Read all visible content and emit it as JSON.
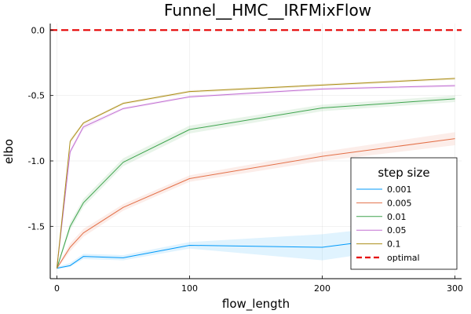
{
  "chart_data": {
    "type": "line",
    "title": "Funnel__HMC__IRFMixFlow",
    "xlabel": "flow_length",
    "ylabel": "elbo",
    "xlim": [
      -5,
      305
    ],
    "ylim": [
      -1.9,
      0.05
    ],
    "xticks": [
      0,
      100,
      200,
      300
    ],
    "yticks": [
      0.0,
      -0.5,
      -1.0,
      -1.5
    ],
    "xtick_labels": [
      "0",
      "100",
      "200",
      "300"
    ],
    "ytick_labels": [
      "0.0",
      "-0.5",
      "-1.0",
      "-1.5"
    ],
    "grid": true,
    "legend": {
      "title": "step size",
      "placement": "bottom-right"
    },
    "x": [
      0,
      10,
      20,
      50,
      100,
      200,
      300
    ],
    "series": [
      {
        "name": "0.001",
        "color": "#009AFA",
        "values": [
          -1.82,
          -1.8,
          -1.73,
          -1.74,
          -1.645,
          -1.66,
          -1.53
        ],
        "lower": [
          -1.83,
          -1.81,
          -1.75,
          -1.76,
          -1.67,
          -1.76,
          -1.61
        ],
        "upper": [
          -1.81,
          -1.78,
          -1.71,
          -1.72,
          -1.62,
          -1.56,
          -1.45
        ]
      },
      {
        "name": "0.005",
        "color": "#E36F47",
        "values": [
          -1.82,
          -1.66,
          -1.55,
          -1.355,
          -1.135,
          -0.965,
          -0.83
        ],
        "lower": [
          -1.83,
          -1.69,
          -1.58,
          -1.38,
          -1.16,
          -1.0,
          -0.88
        ],
        "upper": [
          -1.81,
          -1.63,
          -1.52,
          -1.33,
          -1.11,
          -0.93,
          -0.78
        ]
      },
      {
        "name": "0.01",
        "color": "#3EA44E",
        "values": [
          -1.82,
          -1.5,
          -1.32,
          -1.01,
          -0.76,
          -0.595,
          -0.525
        ],
        "lower": [
          -1.83,
          -1.53,
          -1.35,
          -1.04,
          -0.79,
          -0.62,
          -0.55
        ],
        "upper": [
          -1.81,
          -1.47,
          -1.29,
          -0.98,
          -0.73,
          -0.57,
          -0.5
        ]
      },
      {
        "name": "0.05",
        "color": "#C271D2",
        "values": [
          -1.82,
          -0.93,
          -0.74,
          -0.6,
          -0.51,
          -0.45,
          -0.425
        ],
        "lower": [
          -1.83,
          -0.95,
          -0.76,
          -0.61,
          -0.52,
          -0.46,
          -0.435
        ],
        "upper": [
          -1.81,
          -0.91,
          -0.72,
          -0.59,
          -0.5,
          -0.44,
          -0.415
        ]
      },
      {
        "name": "0.1",
        "color": "#AC8E18",
        "values": [
          -1.82,
          -0.85,
          -0.71,
          -0.56,
          -0.47,
          -0.42,
          -0.37
        ],
        "lower": [
          -1.83,
          -0.87,
          -0.72,
          -0.57,
          -0.48,
          -0.43,
          -0.38
        ],
        "upper": [
          -1.81,
          -0.83,
          -0.7,
          -0.55,
          -0.46,
          -0.41,
          -0.36
        ]
      }
    ],
    "reference_line": {
      "name": "optimal",
      "y": 0.0,
      "color": "#E50000",
      "style": "dashed"
    }
  }
}
